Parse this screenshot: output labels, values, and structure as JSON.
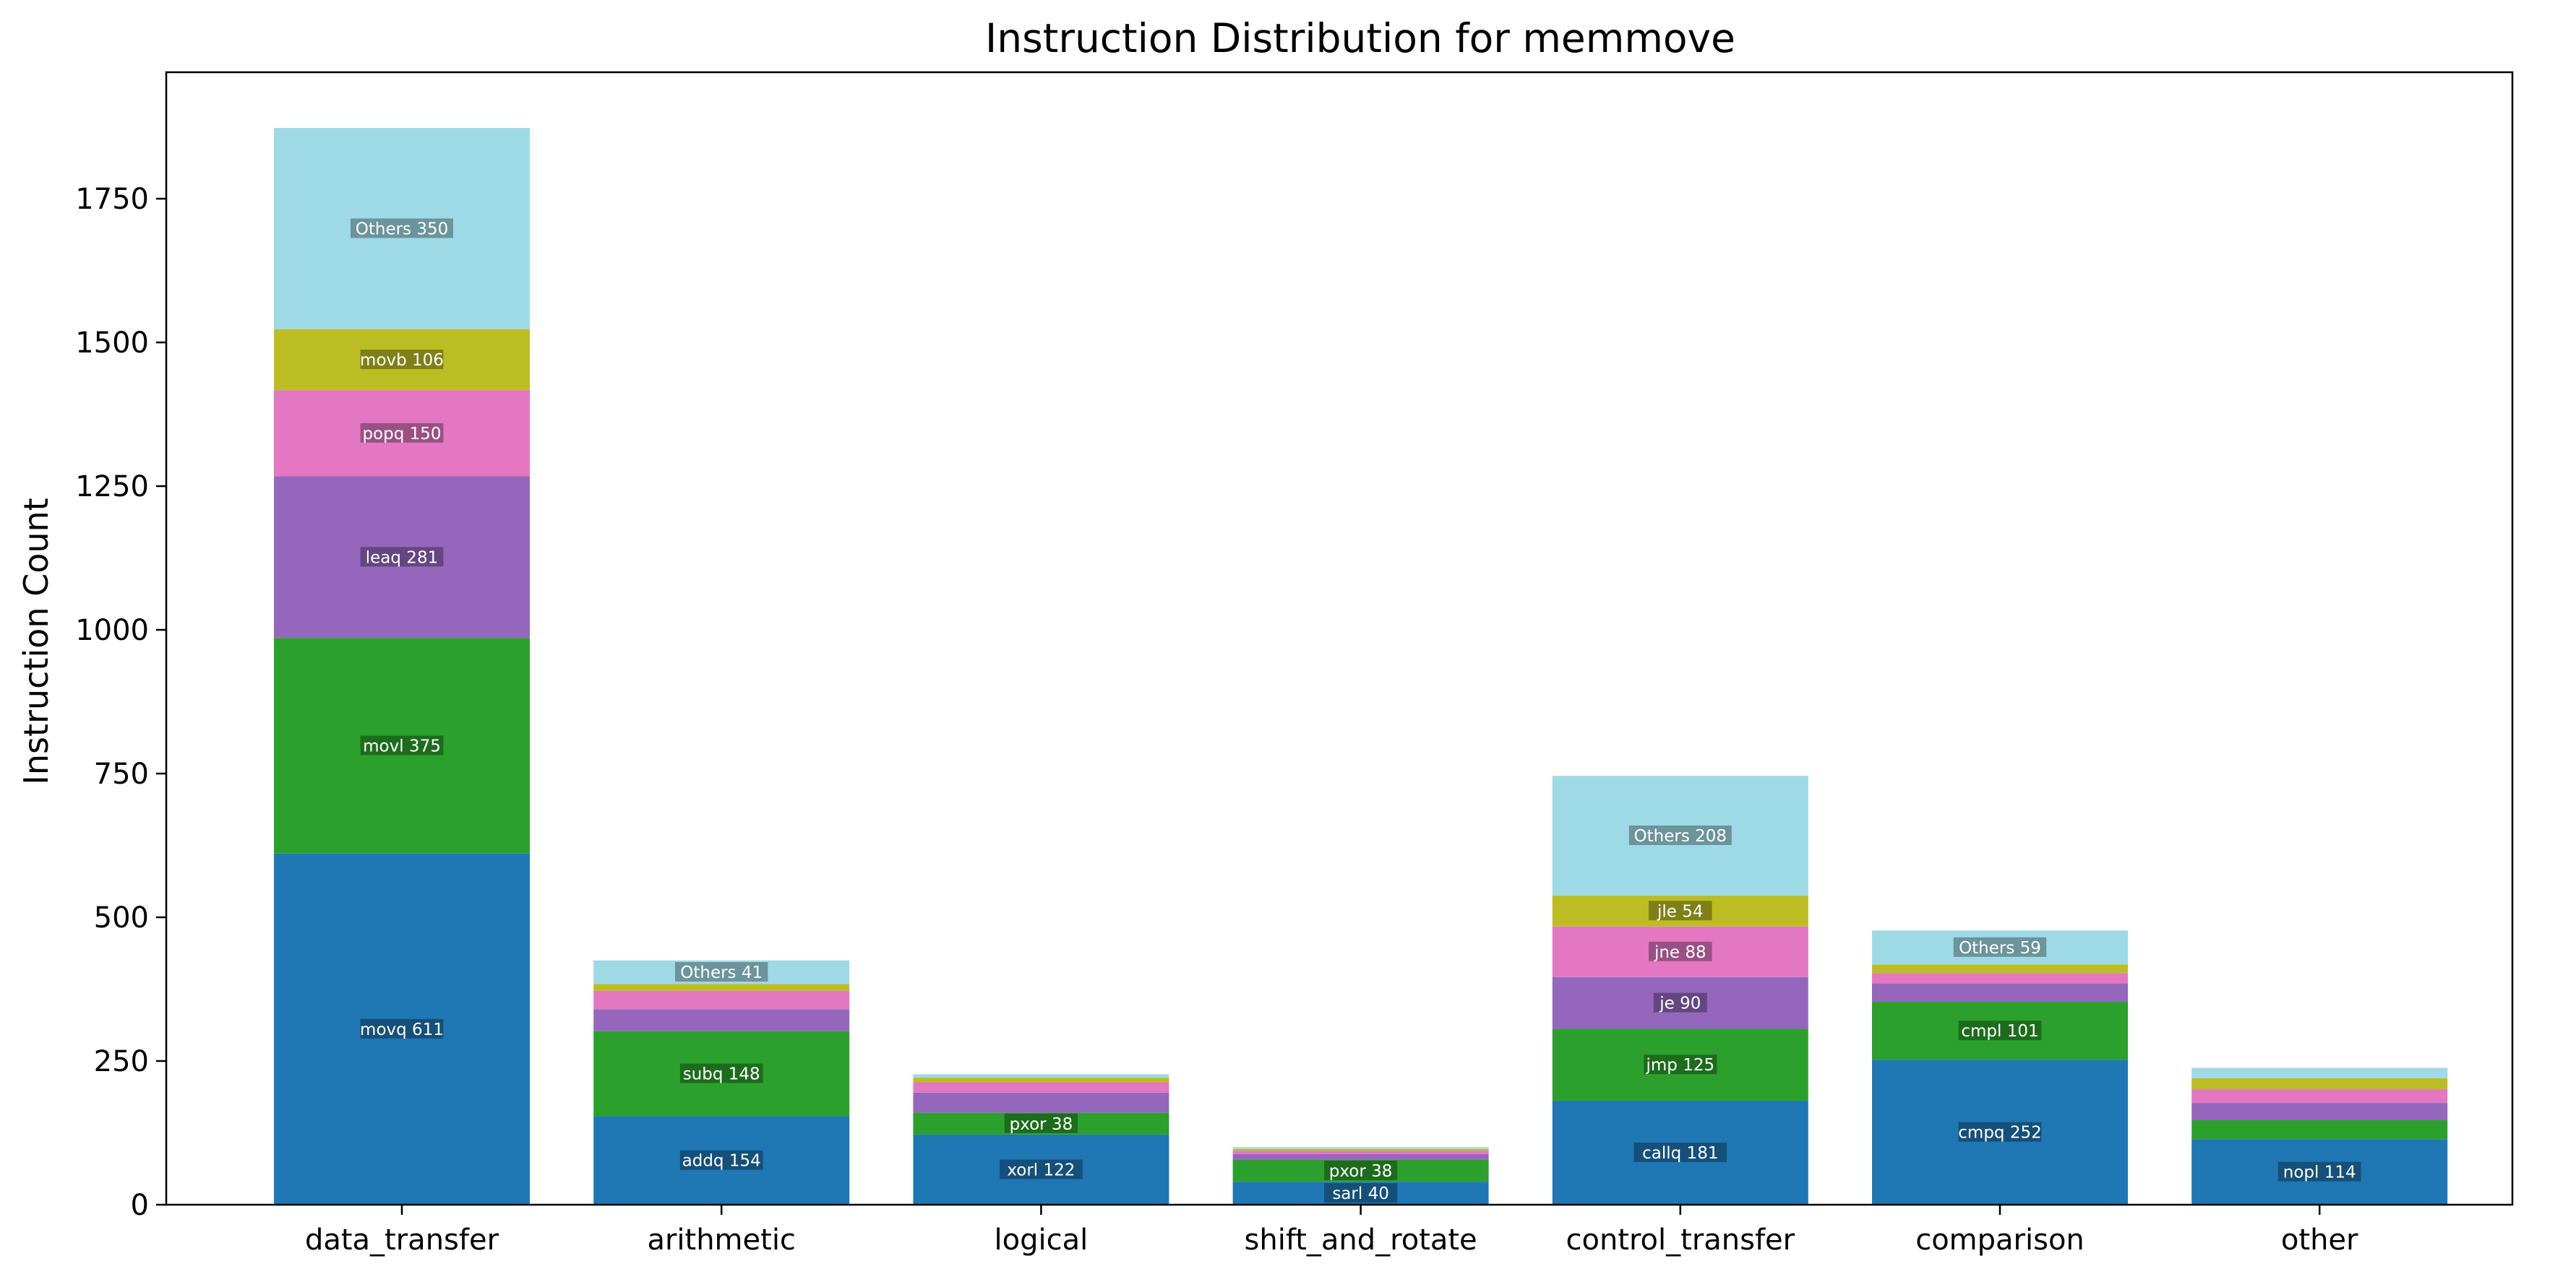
{
  "chart_data": {
    "type": "bar",
    "stacked": true,
    "title": "Instruction Distribution for memmove",
    "xlabel": "",
    "ylabel": "Instruction Count",
    "ylim": [
      0,
      1970
    ],
    "yticks": [
      0,
      250,
      500,
      750,
      1000,
      1250,
      1500,
      1750
    ],
    "categories": [
      "data_transfer",
      "arithmetic",
      "logical",
      "shift_and_rotate",
      "control_transfer",
      "comparison",
      "other"
    ],
    "layer_colors": [
      "#1f77b4",
      "#2ca02c",
      "#9467bd",
      "#e377c2",
      "#bcbd22",
      "#9edae5"
    ],
    "stacks": [
      {
        "category": "data_transfer",
        "segments": [
          {
            "label": "movq 611",
            "value": 611
          },
          {
            "label": "movl 375",
            "value": 375
          },
          {
            "label": "leaq 281",
            "value": 281
          },
          {
            "label": "popq 150",
            "value": 150
          },
          {
            "label": "movb 106",
            "value": 106
          },
          {
            "label": "Others 350",
            "value": 350
          }
        ]
      },
      {
        "category": "arithmetic",
        "segments": [
          {
            "label": "addq 154",
            "value": 154
          },
          {
            "label": "subq 148",
            "value": 148
          },
          {
            "label": "",
            "value": 38
          },
          {
            "label": "",
            "value": 32
          },
          {
            "label": "",
            "value": 12
          },
          {
            "label": "Others 41",
            "value": 41
          }
        ]
      },
      {
        "category": "logical",
        "segments": [
          {
            "label": "xorl 122",
            "value": 122
          },
          {
            "label": "pxor 38",
            "value": 38
          },
          {
            "label": "",
            "value": 35
          },
          {
            "label": "",
            "value": 18
          },
          {
            "label": "",
            "value": 8
          },
          {
            "label": "",
            "value": 6
          }
        ]
      },
      {
        "category": "shift_and_rotate",
        "segments": [
          {
            "label": "sarl 40",
            "value": 40
          },
          {
            "label": "pxor 38",
            "value": 38
          },
          {
            "label": "",
            "value": 10
          },
          {
            "label": "",
            "value": 6
          },
          {
            "label": "",
            "value": 3
          },
          {
            "label": "",
            "value": 3
          }
        ]
      },
      {
        "category": "control_transfer",
        "segments": [
          {
            "label": "callq 181",
            "value": 181
          },
          {
            "label": "jmp 125",
            "value": 125
          },
          {
            "label": "je 90",
            "value": 90
          },
          {
            "label": "jne 88",
            "value": 88
          },
          {
            "label": "jle 54",
            "value": 54
          },
          {
            "label": "Others 208",
            "value": 208
          }
        ]
      },
      {
        "category": "comparison",
        "segments": [
          {
            "label": "cmpq 252",
            "value": 252
          },
          {
            "label": "cmpl 101",
            "value": 101
          },
          {
            "label": "",
            "value": 32
          },
          {
            "label": "",
            "value": 18
          },
          {
            "label": "",
            "value": 15
          },
          {
            "label": "Others 59",
            "value": 59
          }
        ]
      },
      {
        "category": "other",
        "segments": [
          {
            "label": "nopl 114",
            "value": 114
          },
          {
            "label": "",
            "value": 33
          },
          {
            "label": "",
            "value": 30
          },
          {
            "label": "",
            "value": 24
          },
          {
            "label": "",
            "value": 19
          },
          {
            "label": "",
            "value": 18
          }
        ]
      }
    ]
  }
}
